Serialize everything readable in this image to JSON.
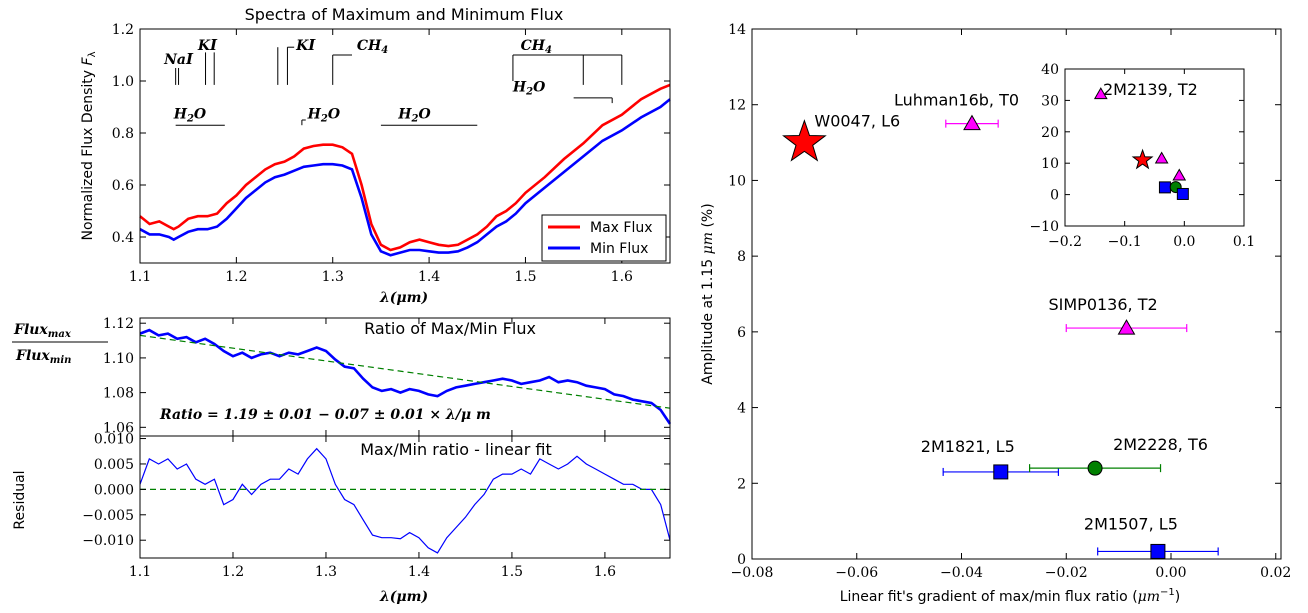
{
  "chart_data": [
    {
      "type": "line",
      "title": "Spectra of Maximum and Minimum Flux",
      "xlabel": "λ(μm)",
      "ylabel": "Normalized Flux Density F_λ",
      "xlim": [
        1.1,
        1.65
      ],
      "ylim": [
        0.3,
        1.2
      ],
      "xticks": [
        "1.1",
        "1.2",
        "1.3",
        "1.4",
        "1.5",
        "1.6"
      ],
      "yticks": [
        "0.4",
        "0.6",
        "0.8",
        "1.0",
        "1.2"
      ],
      "legend": {
        "placement": "bottom-right",
        "entries": [
          "Max Flux",
          "Min Flux"
        ]
      },
      "series": [
        {
          "name": "Max Flux",
          "color": "#ff0000",
          "x": [
            1.1,
            1.11,
            1.12,
            1.13,
            1.135,
            1.14,
            1.15,
            1.16,
            1.17,
            1.18,
            1.19,
            1.2,
            1.21,
            1.22,
            1.23,
            1.24,
            1.25,
            1.26,
            1.27,
            1.28,
            1.29,
            1.3,
            1.31,
            1.32,
            1.33,
            1.34,
            1.35,
            1.36,
            1.37,
            1.38,
            1.39,
            1.4,
            1.41,
            1.42,
            1.43,
            1.44,
            1.45,
            1.46,
            1.47,
            1.48,
            1.49,
            1.5,
            1.52,
            1.54,
            1.56,
            1.58,
            1.6,
            1.62,
            1.64,
            1.65
          ],
          "values": [
            0.48,
            0.45,
            0.46,
            0.44,
            0.43,
            0.44,
            0.47,
            0.48,
            0.48,
            0.49,
            0.53,
            0.56,
            0.6,
            0.63,
            0.66,
            0.68,
            0.69,
            0.71,
            0.74,
            0.75,
            0.755,
            0.755,
            0.745,
            0.72,
            0.6,
            0.45,
            0.37,
            0.35,
            0.36,
            0.38,
            0.39,
            0.38,
            0.37,
            0.365,
            0.37,
            0.39,
            0.41,
            0.44,
            0.48,
            0.5,
            0.53,
            0.57,
            0.63,
            0.7,
            0.76,
            0.83,
            0.87,
            0.93,
            0.97,
            0.985
          ]
        },
        {
          "name": "Min Flux",
          "color": "#0000ff",
          "x": [
            1.1,
            1.11,
            1.12,
            1.13,
            1.135,
            1.14,
            1.15,
            1.16,
            1.17,
            1.18,
            1.19,
            1.2,
            1.21,
            1.22,
            1.23,
            1.24,
            1.25,
            1.26,
            1.27,
            1.28,
            1.29,
            1.3,
            1.31,
            1.32,
            1.33,
            1.34,
            1.35,
            1.36,
            1.37,
            1.38,
            1.39,
            1.4,
            1.41,
            1.42,
            1.43,
            1.44,
            1.45,
            1.46,
            1.47,
            1.48,
            1.49,
            1.5,
            1.52,
            1.54,
            1.56,
            1.58,
            1.6,
            1.62,
            1.64,
            1.65
          ],
          "values": [
            0.43,
            0.41,
            0.41,
            0.4,
            0.39,
            0.4,
            0.42,
            0.43,
            0.43,
            0.44,
            0.47,
            0.51,
            0.55,
            0.58,
            0.61,
            0.63,
            0.64,
            0.655,
            0.67,
            0.675,
            0.68,
            0.68,
            0.675,
            0.66,
            0.55,
            0.41,
            0.345,
            0.33,
            0.34,
            0.35,
            0.35,
            0.345,
            0.34,
            0.34,
            0.345,
            0.36,
            0.38,
            0.41,
            0.44,
            0.46,
            0.49,
            0.53,
            0.59,
            0.65,
            0.71,
            0.77,
            0.81,
            0.86,
            0.9,
            0.93
          ]
        }
      ],
      "annotations": [
        {
          "text": "NaI",
          "x": 1.14,
          "y": 1.07
        },
        {
          "text": "KI",
          "x": 1.17,
          "y": 1.12
        },
        {
          "text": "KI",
          "x": 1.27,
          "y": 1.1
        },
        {
          "text": "CH4",
          "x": 1.33,
          "y": 1.1
        },
        {
          "text": "CH4",
          "x": 1.52,
          "y": 1.1
        },
        {
          "text": "H2O",
          "x": 1.15,
          "y": 0.86
        },
        {
          "text": "H2O",
          "x": 1.29,
          "y": 0.86
        },
        {
          "text": "H2O",
          "x": 1.39,
          "y": 0.86
        },
        {
          "text": "H2O",
          "x": 1.52,
          "y": 0.95
        }
      ]
    },
    {
      "type": "line",
      "title": "Ratio of Max/Min Flux",
      "ylabel": "Flux_max / Flux_min",
      "xlim": [
        1.1,
        1.67
      ],
      "ylim": [
        1.055,
        1.123
      ],
      "yticks": [
        "1.06",
        "1.08",
        "1.10",
        "1.12"
      ],
      "annotation": "Ratio = 1.19 ± 0.01 − 0.07 ± 0.01 × λ/μ m",
      "series": [
        {
          "name": "",
          "color": "#0000ff",
          "x": [
            1.1,
            1.11,
            1.12,
            1.13,
            1.14,
            1.15,
            1.16,
            1.17,
            1.18,
            1.19,
            1.2,
            1.21,
            1.22,
            1.23,
            1.24,
            1.25,
            1.26,
            1.27,
            1.28,
            1.29,
            1.3,
            1.31,
            1.32,
            1.33,
            1.34,
            1.35,
            1.36,
            1.37,
            1.38,
            1.39,
            1.4,
            1.41,
            1.42,
            1.43,
            1.44,
            1.45,
            1.46,
            1.47,
            1.48,
            1.49,
            1.5,
            1.51,
            1.52,
            1.53,
            1.54,
            1.55,
            1.56,
            1.57,
            1.58,
            1.59,
            1.6,
            1.61,
            1.62,
            1.63,
            1.64,
            1.65,
            1.66,
            1.67
          ],
          "values": [
            1.114,
            1.116,
            1.113,
            1.114,
            1.111,
            1.112,
            1.109,
            1.111,
            1.108,
            1.104,
            1.101,
            1.103,
            1.1,
            1.102,
            1.103,
            1.101,
            1.103,
            1.102,
            1.104,
            1.106,
            1.104,
            1.099,
            1.095,
            1.094,
            1.088,
            1.083,
            1.081,
            1.082,
            1.08,
            1.082,
            1.081,
            1.079,
            1.078,
            1.081,
            1.083,
            1.084,
            1.085,
            1.086,
            1.087,
            1.088,
            1.087,
            1.085,
            1.086,
            1.087,
            1.089,
            1.086,
            1.087,
            1.086,
            1.084,
            1.083,
            1.082,
            1.079,
            1.078,
            1.076,
            1.075,
            1.074,
            1.07,
            1.062
          ]
        },
        {
          "name": "",
          "color": "#008000",
          "style": "dashed",
          "x": [
            1.1,
            1.67
          ],
          "values": [
            1.113,
            1.071
          ]
        }
      ]
    },
    {
      "type": "line",
      "title": "Max/Min ratio - linear fit",
      "xlabel": "λ(μm)",
      "ylabel": "Residual",
      "xlim": [
        1.1,
        1.67
      ],
      "ylim": [
        -0.0135,
        0.0105
      ],
      "xticks": [
        "1.1",
        "1.2",
        "1.3",
        "1.4",
        "1.5",
        "1.6"
      ],
      "yticks": [
        "0.010",
        "0.005",
        "0.000",
        "−0.005",
        "−0.010"
      ],
      "series": [
        {
          "name": "",
          "color": "#0000ff",
          "x": [
            1.1,
            1.11,
            1.12,
            1.13,
            1.14,
            1.15,
            1.16,
            1.17,
            1.18,
            1.19,
            1.2,
            1.21,
            1.22,
            1.23,
            1.24,
            1.25,
            1.26,
            1.27,
            1.28,
            1.29,
            1.3,
            1.31,
            1.32,
            1.33,
            1.34,
            1.35,
            1.36,
            1.37,
            1.38,
            1.39,
            1.4,
            1.41,
            1.42,
            1.43,
            1.44,
            1.45,
            1.46,
            1.47,
            1.48,
            1.49,
            1.5,
            1.51,
            1.52,
            1.53,
            1.54,
            1.55,
            1.56,
            1.57,
            1.58,
            1.59,
            1.6,
            1.61,
            1.62,
            1.63,
            1.64,
            1.65,
            1.66,
            1.67
          ],
          "values": [
            0.001,
            0.006,
            0.005,
            0.006,
            0.004,
            0.005,
            0.002,
            0.001,
            0.002,
            -0.003,
            -0.002,
            0.001,
            -0.001,
            0.001,
            0.002,
            0.002,
            0.004,
            0.003,
            0.006,
            0.008,
            0.006,
            0.001,
            -0.002,
            -0.003,
            -0.006,
            -0.009,
            -0.0095,
            -0.0095,
            -0.0097,
            -0.0085,
            -0.0095,
            -0.0115,
            -0.0125,
            -0.0095,
            -0.0075,
            -0.0055,
            -0.003,
            -0.001,
            0.002,
            0.003,
            0.003,
            0.004,
            0.003,
            0.006,
            0.005,
            0.004,
            0.005,
            0.0065,
            0.005,
            0.004,
            0.003,
            0.002,
            0.001,
            0.001,
            0.0,
            0.0,
            -0.003,
            -0.01
          ]
        },
        {
          "name": "",
          "color": "#008000",
          "style": "dashed",
          "x": [
            1.1,
            1.67
          ],
          "values": [
            0.0,
            0.0
          ]
        }
      ]
    },
    {
      "type": "scatter",
      "title": "",
      "xlabel": "Linear fit's gradient of max/min flux ratio (μm⁻¹)",
      "ylabel": "Amplitude at 1.15 μm (%)",
      "xlim": [
        -0.08,
        0.021
      ],
      "ylim": [
        0,
        14
      ],
      "xticks": [
        "−0.08",
        "−0.06",
        "−0.04",
        "−0.02",
        "0.00",
        "0.02"
      ],
      "yticks": [
        "0",
        "2",
        "4",
        "6",
        "8",
        "10",
        "12",
        "14"
      ],
      "points": [
        {
          "label": "W0047, L6",
          "x": -0.07,
          "y": 11.0,
          "marker": "star",
          "color": "#ff0000"
        },
        {
          "label": "Luhman16b, T0",
          "x": -0.038,
          "y": 11.5,
          "xerr": 0.005,
          "marker": "triangle",
          "color": "#ff00ff"
        },
        {
          "label": "SIMP0136, T2",
          "x": -0.0085,
          "y": 6.1,
          "xerr": 0.0115,
          "marker": "triangle",
          "color": "#ff00ff"
        },
        {
          "label": "2M1821, L5",
          "x": -0.0325,
          "y": 2.3,
          "xerr": 0.011,
          "marker": "square",
          "color": "#0000ff"
        },
        {
          "label": "2M2228, T6",
          "x": -0.0145,
          "y": 2.4,
          "xerr": 0.0125,
          "marker": "circle",
          "color": "#008000"
        },
        {
          "label": "2M1507, L5",
          "x": -0.0025,
          "y": 0.2,
          "xerr": 0.0115,
          "marker": "square",
          "color": "#0000ff"
        }
      ],
      "inset": {
        "label": "2M2139, T2",
        "xlim": [
          -0.2,
          0.1
        ],
        "ylim": [
          -10,
          40
        ],
        "xticks": [
          "−0.2",
          "−0.1",
          "0.0",
          "0.1"
        ],
        "yticks": [
          "−10",
          "0",
          "10",
          "20",
          "30",
          "40"
        ],
        "points": [
          {
            "x": -0.14,
            "y": 32,
            "marker": "triangle",
            "color": "#ff00ff"
          },
          {
            "x": -0.07,
            "y": 11,
            "marker": "star",
            "color": "#ff0000"
          },
          {
            "x": -0.038,
            "y": 11.5,
            "marker": "triangle",
            "color": "#ff00ff"
          },
          {
            "x": -0.0085,
            "y": 6.1,
            "marker": "triangle",
            "color": "#ff00ff"
          },
          {
            "x": -0.0325,
            "y": 2.3,
            "marker": "square",
            "color": "#0000ff"
          },
          {
            "x": -0.0145,
            "y": 2.4,
            "marker": "circle",
            "color": "#008000"
          },
          {
            "x": -0.0025,
            "y": 0.2,
            "marker": "square",
            "color": "#0000ff"
          }
        ]
      }
    }
  ]
}
